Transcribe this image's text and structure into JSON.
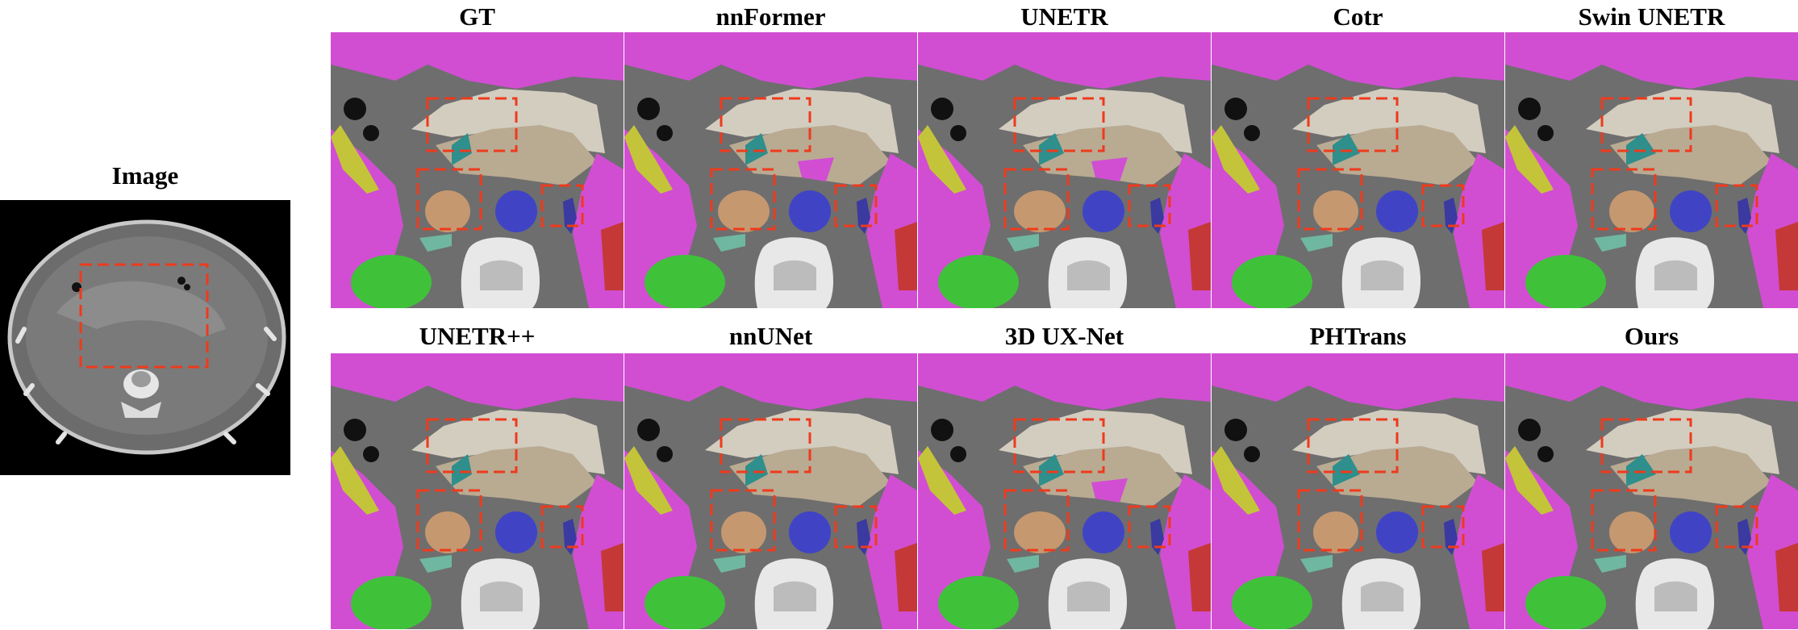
{
  "figure": {
    "input_label": "Image",
    "methods": [
      {
        "name": "GT"
      },
      {
        "name": "nnFormer"
      },
      {
        "name": "UNETR"
      },
      {
        "name": "Cotr"
      },
      {
        "name": "Swin UNETR"
      },
      {
        "name": "UNETR++"
      },
      {
        "name": "nnUNet"
      },
      {
        "name": "3D UX-Net"
      },
      {
        "name": "PHTrans"
      },
      {
        "name": "Ours"
      }
    ]
  },
  "colors": {
    "background_tissue": "#6e6e6e",
    "liver": "#d14ed2",
    "stomach": "#d8d2c4",
    "pancreas": "#b9aa92",
    "gallbladder": "#2e8f8c",
    "duodenum": "#c69870",
    "aorta": "#4044c4",
    "ivc": "#3a3aa0",
    "kidney": "#c53838",
    "spleen": "#3fc23a",
    "small_organ": "#6fb7a0",
    "colon": "#c4c43a",
    "box": "#ee3a1c"
  }
}
